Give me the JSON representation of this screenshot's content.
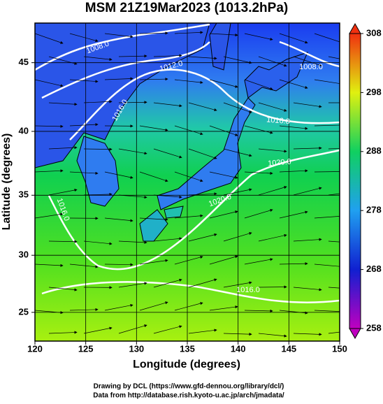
{
  "chart_data": {
    "type": "map",
    "title": "MSM 21Z19Mar2023 (1013.2hPa)",
    "x_label": "Longitude (degrees)",
    "y_label": "Latitude  (degrees)",
    "xlim": [
      120,
      150
    ],
    "xticks": [
      120,
      125,
      130,
      135,
      140,
      145,
      150
    ],
    "ylim": [
      22.4,
      47.7
    ],
    "yticks": [
      25,
      30,
      35,
      40,
      45
    ],
    "projection": "mercator",
    "grid": true,
    "contour_labels": [
      "1008.0",
      "1012.0",
      "1016.0",
      "1008.0",
      "1016.0",
      "1020.0",
      "1020.0",
      "1016.0",
      "1016.0"
    ],
    "colorbar": {
      "lim": [
        258,
        308
      ],
      "ticks": [
        258,
        268,
        278,
        288,
        298,
        308
      ],
      "colors": [
        "#c000c0",
        "#1020d0",
        "#20a0f0",
        "#10d060",
        "#e0f010",
        "#f03010"
      ]
    },
    "credits": [
      "Drawing by DCL (https://www.gfd-dennou.org/library/dcl/)",
      "Data from http://database.rish.kyoto-u.ac.jp/arch/jmadata/"
    ]
  }
}
